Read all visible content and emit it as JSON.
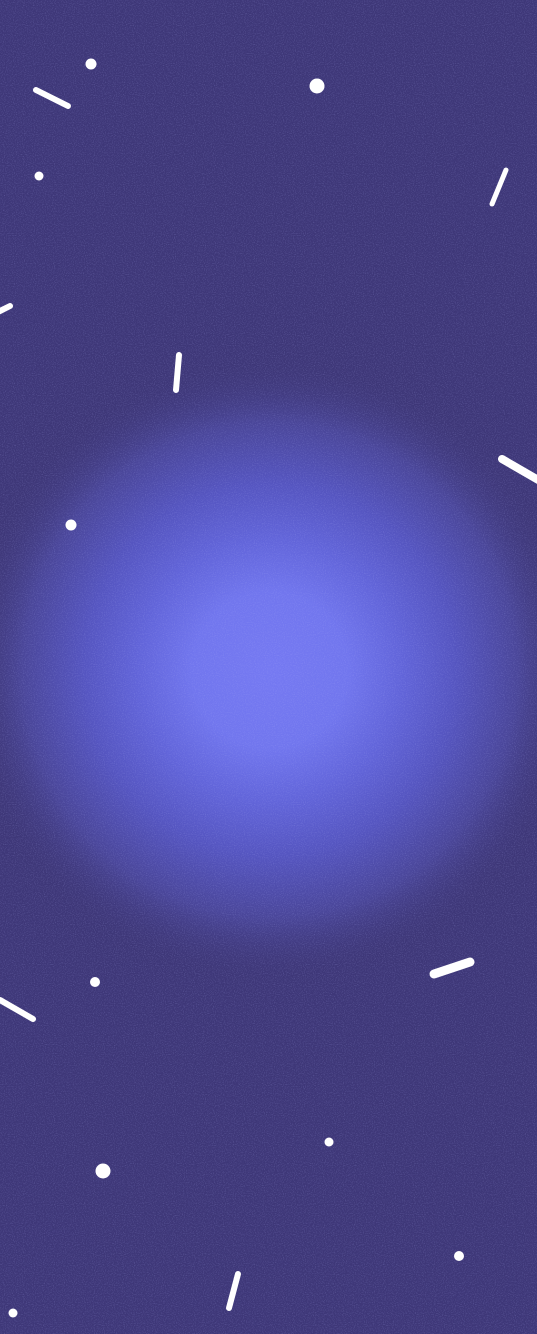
{
  "colors": {
    "background": "#3e3778",
    "glow_core": "#7378f0",
    "glow_mid": "#5d5fd2",
    "glow_outer": "#4b469e",
    "confetti": "#ffffff"
  },
  "confetti_icons": {
    "dot": "dot-confetti-icon",
    "dash": "dash-confetti-icon"
  }
}
